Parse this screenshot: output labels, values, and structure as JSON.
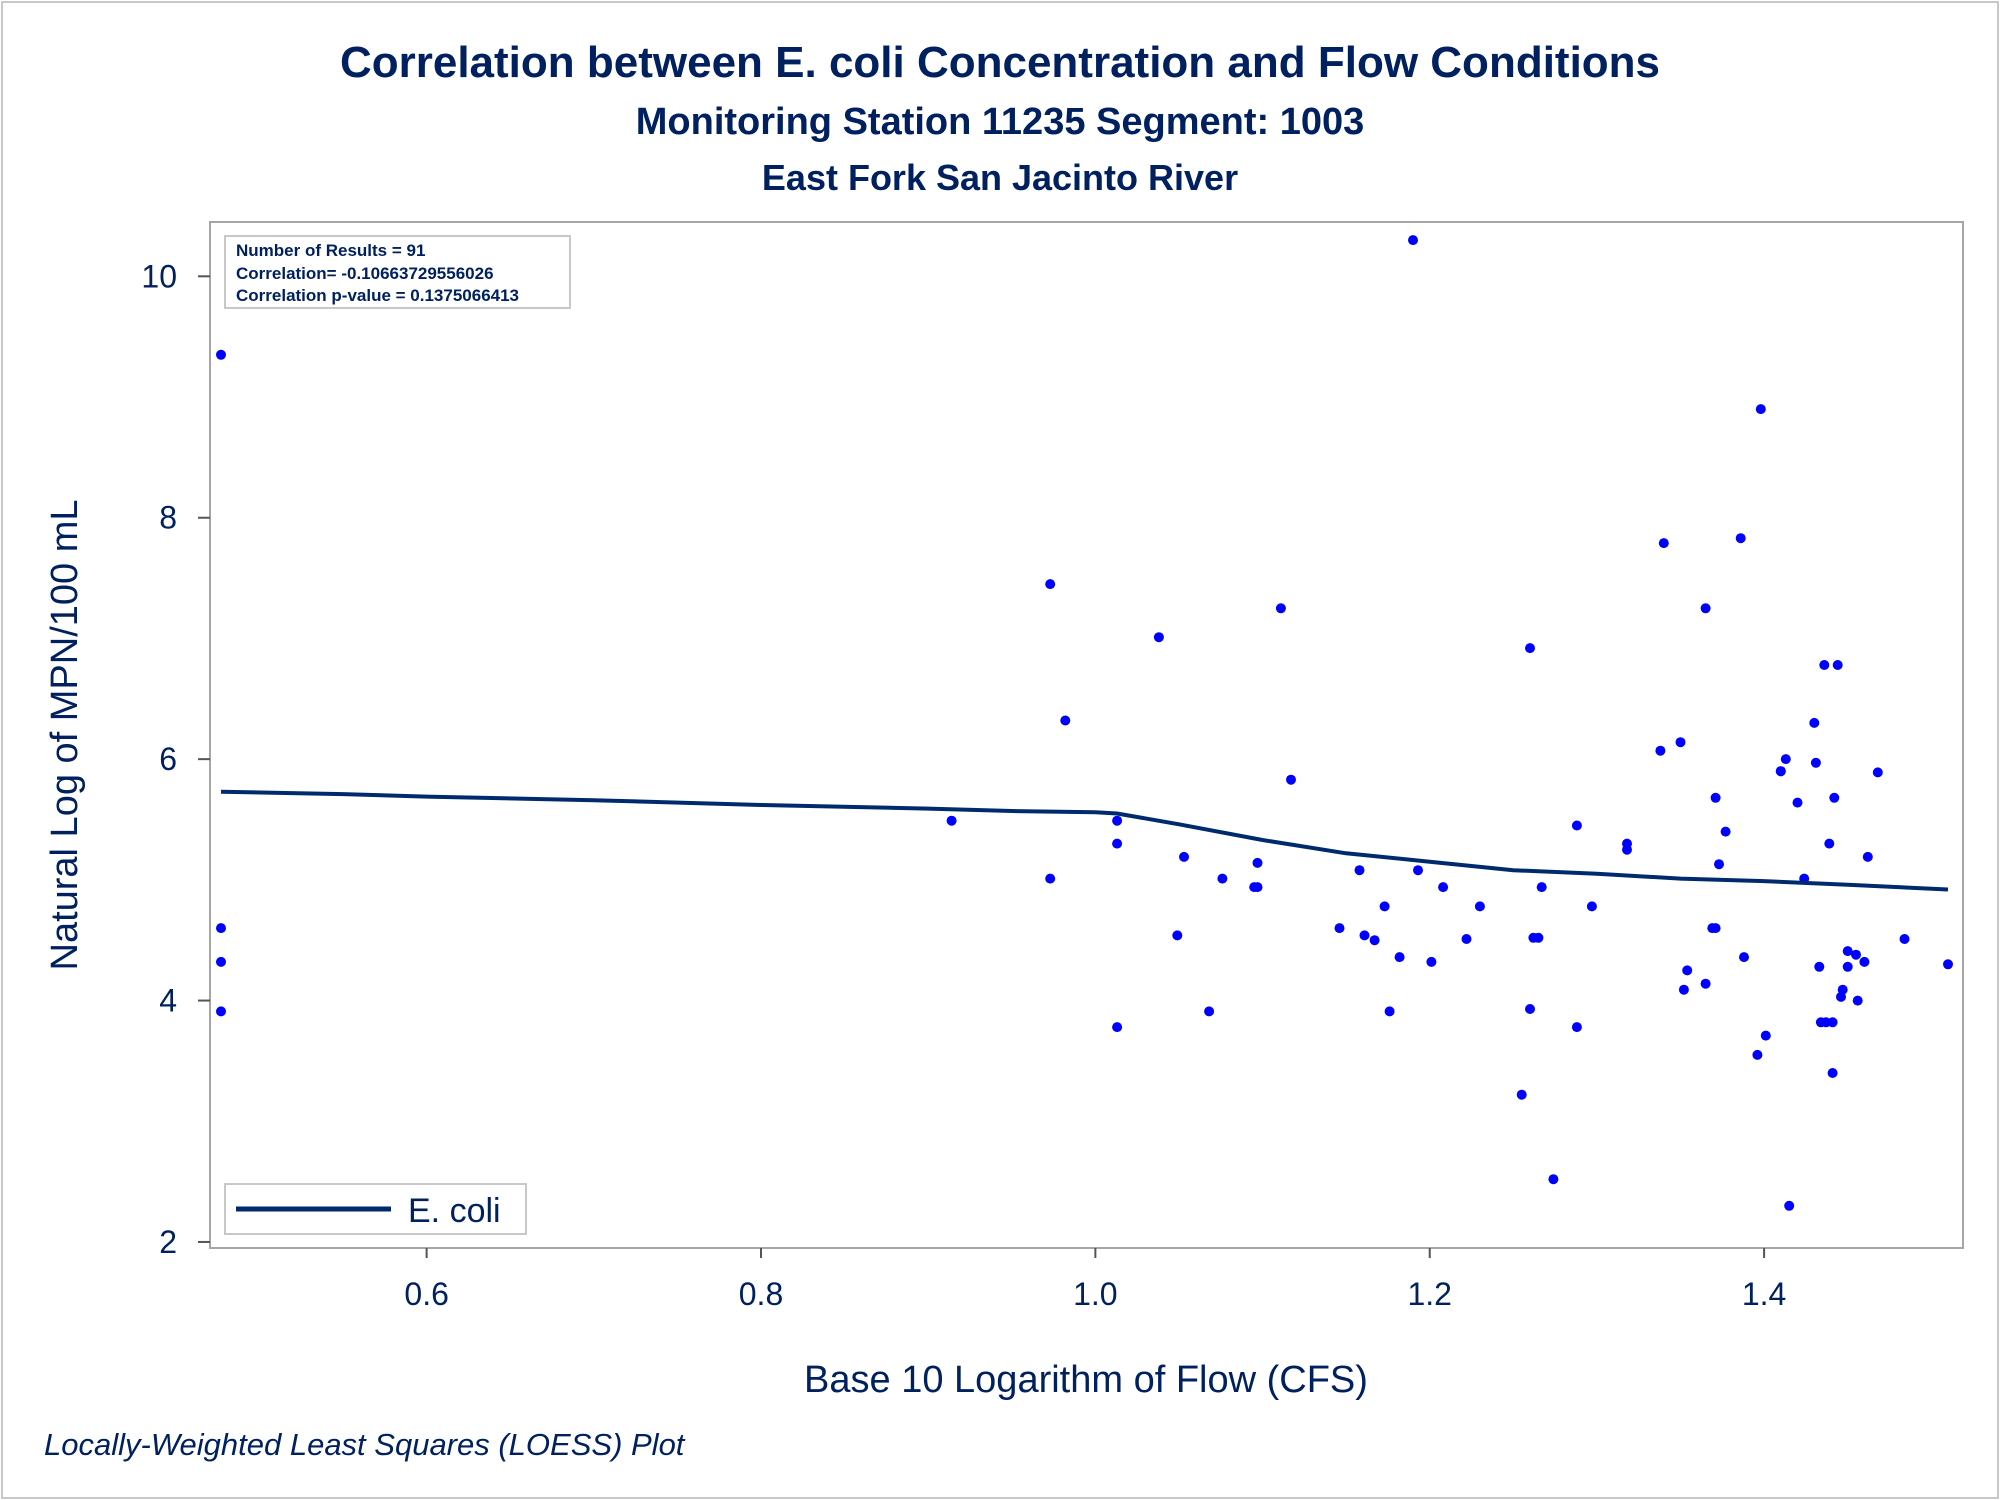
{
  "colors": {
    "text": "#002060",
    "line": "#002a6e",
    "points": "#0000ff",
    "frame": "#a6a6a6"
  },
  "chart_data": {
    "type": "scatter",
    "title": "Correlation between E. coli Concentration and Flow Conditions",
    "subtitle": "Monitoring Station 11235 Segment: 1003",
    "subtitle2": "East Fork San Jacinto River",
    "xlabel": "Base 10 Logarithm of Flow (CFS)",
    "ylabel": "Natural Log of MPN/100 mL",
    "footnote": "Locally-Weighted Least Squares (LOESS) Plot",
    "xlim": [
      0.477,
      1.51
    ],
    "ylim": [
      1.95,
      10.45
    ],
    "xticks": [
      "0.6",
      "0.8",
      "1.0",
      "1.2",
      "1.4"
    ],
    "xtick_values": [
      0.6,
      0.8,
      1.0,
      1.2,
      1.4
    ],
    "yticks": [
      "2",
      "4",
      "6",
      "8",
      "10"
    ],
    "ytick_values": [
      2,
      4,
      6,
      8,
      10
    ],
    "grid": false,
    "legend": {
      "placement": "bottom-left",
      "entries": [
        "E. coli"
      ]
    },
    "stats": [
      "Number of Results = 91",
      "Correlation= -0.10663729556026",
      "Correlation p-value = 0.1375066413"
    ],
    "points": [
      [
        0.477,
        9.35
      ],
      [
        0.477,
        4.6
      ],
      [
        0.477,
        4.32
      ],
      [
        0.477,
        3.91
      ],
      [
        0.914,
        5.49
      ],
      [
        0.973,
        7.45
      ],
      [
        0.973,
        5.01
      ],
      [
        0.982,
        6.32
      ],
      [
        1.013,
        5.49
      ],
      [
        1.013,
        5.3
      ],
      [
        1.013,
        3.78
      ],
      [
        1.038,
        7.01
      ],
      [
        1.049,
        4.54
      ],
      [
        1.053,
        5.19
      ],
      [
        1.068,
        3.91
      ],
      [
        1.076,
        5.01
      ],
      [
        1.097,
        5.14
      ],
      [
        1.097,
        4.94
      ],
      [
        1.111,
        7.25
      ],
      [
        1.117,
        5.83
      ],
      [
        1.146,
        4.6
      ],
      [
        1.158,
        5.08
      ],
      [
        1.161,
        4.54
      ],
      [
        1.167,
        4.5
      ],
      [
        1.173,
        4.78
      ],
      [
        1.176,
        3.91
      ],
      [
        1.182,
        4.36
      ],
      [
        1.19,
        10.3
      ],
      [
        1.193,
        5.08
      ],
      [
        1.201,
        4.32
      ],
      [
        1.208,
        4.94
      ],
      [
        1.222,
        4.51
      ],
      [
        1.23,
        4.78
      ],
      [
        1.255,
        3.22
      ],
      [
        1.26,
        6.92
      ],
      [
        1.26,
        3.93
      ],
      [
        1.265,
        4.52
      ],
      [
        1.267,
        4.94
      ],
      [
        1.274,
        2.52
      ],
      [
        1.288,
        5.45
      ],
      [
        1.288,
        3.78
      ],
      [
        1.297,
        4.78
      ],
      [
        1.318,
        5.3
      ],
      [
        1.318,
        5.25
      ],
      [
        1.338,
        6.07
      ],
      [
        1.34,
        7.79
      ],
      [
        1.35,
        6.14
      ],
      [
        1.352,
        4.09
      ],
      [
        1.354,
        4.25
      ],
      [
        1.365,
        7.25
      ],
      [
        1.365,
        4.14
      ],
      [
        1.369,
        4.6
      ],
      [
        1.371,
        5.68
      ],
      [
        1.373,
        5.13
      ],
      [
        1.377,
        5.4
      ],
      [
        1.386,
        7.83
      ],
      [
        1.388,
        4.36
      ],
      [
        1.396,
        3.55
      ],
      [
        1.398,
        8.9
      ],
      [
        1.401,
        3.71
      ],
      [
        1.41,
        5.9
      ],
      [
        1.413,
        6.0
      ],
      [
        1.415,
        2.3
      ],
      [
        1.42,
        5.64
      ],
      [
        1.424,
        5.01
      ],
      [
        1.43,
        6.3
      ],
      [
        1.431,
        5.97
      ],
      [
        1.433,
        4.28
      ],
      [
        1.434,
        3.82
      ],
      [
        1.436,
        6.78
      ],
      [
        1.437,
        3.82
      ],
      [
        1.439,
        5.3
      ],
      [
        1.441,
        3.4
      ],
      [
        1.442,
        5.68
      ],
      [
        1.444,
        6.78
      ],
      [
        1.446,
        4.03
      ],
      [
        1.447,
        4.09
      ],
      [
        1.45,
        4.41
      ],
      [
        1.45,
        4.28
      ],
      [
        1.455,
        4.38
      ],
      [
        1.456,
        4.0
      ],
      [
        1.46,
        4.32
      ],
      [
        1.462,
        5.19
      ],
      [
        1.468,
        5.89
      ],
      [
        1.484,
        4.51
      ],
      [
        1.51,
        4.3
      ],
      [
        1.095,
        4.94
      ],
      [
        1.262,
        4.52
      ],
      [
        1.371,
        4.6
      ],
      [
        1.441,
        3.82
      ],
      [
        1.41,
        5.9
      ]
    ],
    "series": [
      {
        "name": "E. coli",
        "type": "line",
        "x": [
          0.477,
          0.55,
          0.6,
          0.7,
          0.8,
          0.9,
          0.95,
          1.0,
          1.013,
          1.05,
          1.1,
          1.15,
          1.2,
          1.25,
          1.3,
          1.35,
          1.4,
          1.45,
          1.51
        ],
        "y": [
          5.73,
          5.71,
          5.69,
          5.66,
          5.62,
          5.59,
          5.57,
          5.56,
          5.55,
          5.46,
          5.33,
          5.22,
          5.15,
          5.08,
          5.05,
          5.01,
          4.99,
          4.96,
          4.92
        ]
      }
    ]
  }
}
